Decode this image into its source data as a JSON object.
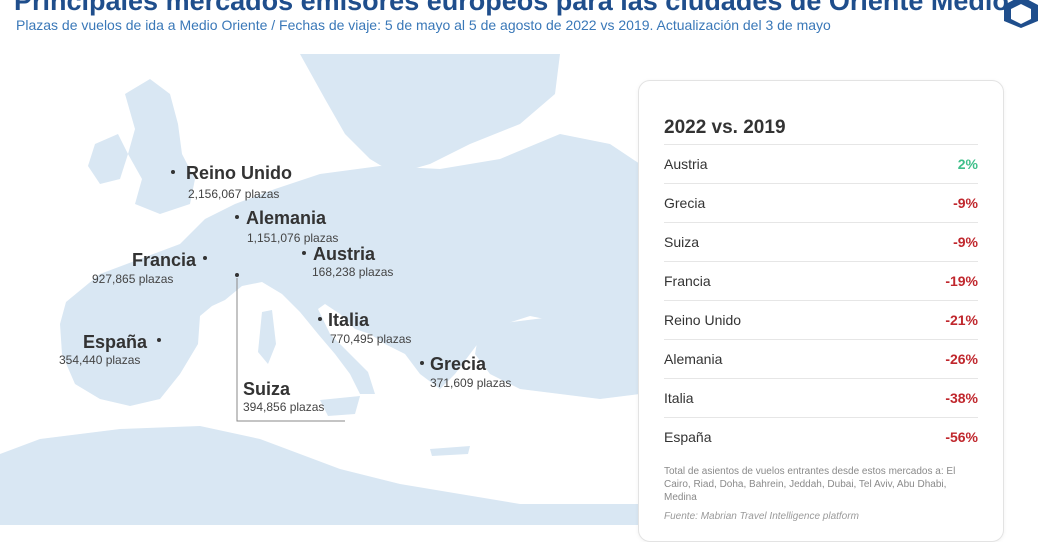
{
  "header": {
    "title": "Principales mercados emisores europeos para las ciudades de Oriente Medio",
    "subtitle": "Plazas de vuelos de ida a Medio Oriente / Fechas de viaje: 5 de mayo al 5 de agosto de 2022 vs 2019. Actualización del 3 de mayo"
  },
  "map": {
    "land_color": "#d9e7f3",
    "dot_color": "#333333",
    "markers": [
      {
        "name": "Reino Unido",
        "seats": "2,156,067 plazas"
      },
      {
        "name": "Alemania",
        "seats": "1,151,076 plazas"
      },
      {
        "name": "Francia",
        "seats": "927,865 plazas"
      },
      {
        "name": "Austria",
        "seats": "168,238 plazas"
      },
      {
        "name": "Italia",
        "seats": "770,495 plazas"
      },
      {
        "name": "España",
        "seats": "354,440 plazas"
      },
      {
        "name": "Grecia",
        "seats": "371,609 plazas"
      },
      {
        "name": "Suiza",
        "seats": "394,856 plazas"
      }
    ]
  },
  "panel": {
    "title": "2022 vs. 2019",
    "rows": [
      {
        "country": "Austria",
        "change": "2%",
        "trend": "positive"
      },
      {
        "country": "Grecia",
        "change": "-9%",
        "trend": "negative"
      },
      {
        "country": "Suiza",
        "change": "-9%",
        "trend": "negative"
      },
      {
        "country": "Francia",
        "change": "-19%",
        "trend": "negative"
      },
      {
        "country": "Reino Unido",
        "change": "-21%",
        "trend": "negative"
      },
      {
        "country": "Alemania",
        "change": "-26%",
        "trend": "negative"
      },
      {
        "country": "Italia",
        "change": "-38%",
        "trend": "negative"
      },
      {
        "country": "España",
        "change": "-56%",
        "trend": "negative"
      }
    ],
    "note": "Total de asientos de vuelos entrantes desde estos mercados a: El Cairo, Riad, Doha, Bahrein, Jeddah, Dubai, Tel Aviv, Abu Dhabi, Medina",
    "source": "Fuente: Mabrian Travel Intelligence platform",
    "colors": {
      "positive": "#3fbf8a",
      "negative": "#c0272d"
    }
  },
  "logo": {
    "icon": "hexagon-logo-icon"
  }
}
